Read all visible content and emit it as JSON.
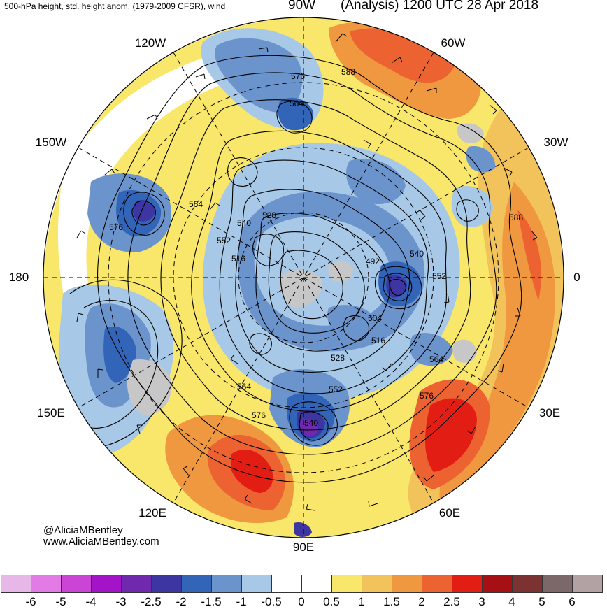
{
  "header": {
    "left_title": "500-hPa height, std. height anom. (1979-2009 CFSR), wind",
    "mid_title": "90W",
    "right_title": "(Analysis) 1200 UTC 28 Apr 2018"
  },
  "lon_labels": {
    "w120": "120W",
    "w60": "60W",
    "w150": "150W",
    "w30": "30W",
    "lon180": "180",
    "lon0": "0",
    "e150": "150E",
    "e30": "30E",
    "e120": "120E",
    "e60": "60E",
    "e90": "90E"
  },
  "contour_labels": {
    "l576a": "576",
    "l588a": "588",
    "l564a": "564",
    "l564b": "564",
    "l576b": "576",
    "l540a": "540",
    "l528a": "528",
    "l552a": "552",
    "l516a": "516",
    "l492": "492",
    "l540b": "540",
    "l552b": "552",
    "l504": "504",
    "l516b": "516",
    "l564c": "564",
    "l528b": "528",
    "l552c": "552",
    "l576c": "576",
    "l564d": "564",
    "l576d": "576",
    "l540c": "540",
    "l588b": "588"
  },
  "credit": {
    "line1": "@AliciaMBentley",
    "line2": "www.AliciaMBentley.com"
  },
  "colorbar": {
    "colors": [
      "#e7b8e7",
      "#e27be6",
      "#cc44d6",
      "#a513c9",
      "#7028ae",
      "#3d35a1",
      "#3264b8",
      "#6b93cc",
      "#a7c8e6",
      "#ffffff",
      "#ffffff",
      "#f9e76b",
      "#f2c35b",
      "#ef9840",
      "#ec6230",
      "#e21d13",
      "#a60f13",
      "#7d3232",
      "#7c6868",
      "#b3a2a3"
    ],
    "labels": [
      "-6",
      "-5",
      "-4",
      "-3",
      "-2.5",
      "-2",
      "-1.5",
      "-1",
      "-0.5",
      "0",
      "0.5",
      "1",
      "1.5",
      "2",
      "2.5",
      "3",
      "4",
      "5",
      "6"
    ]
  }
}
